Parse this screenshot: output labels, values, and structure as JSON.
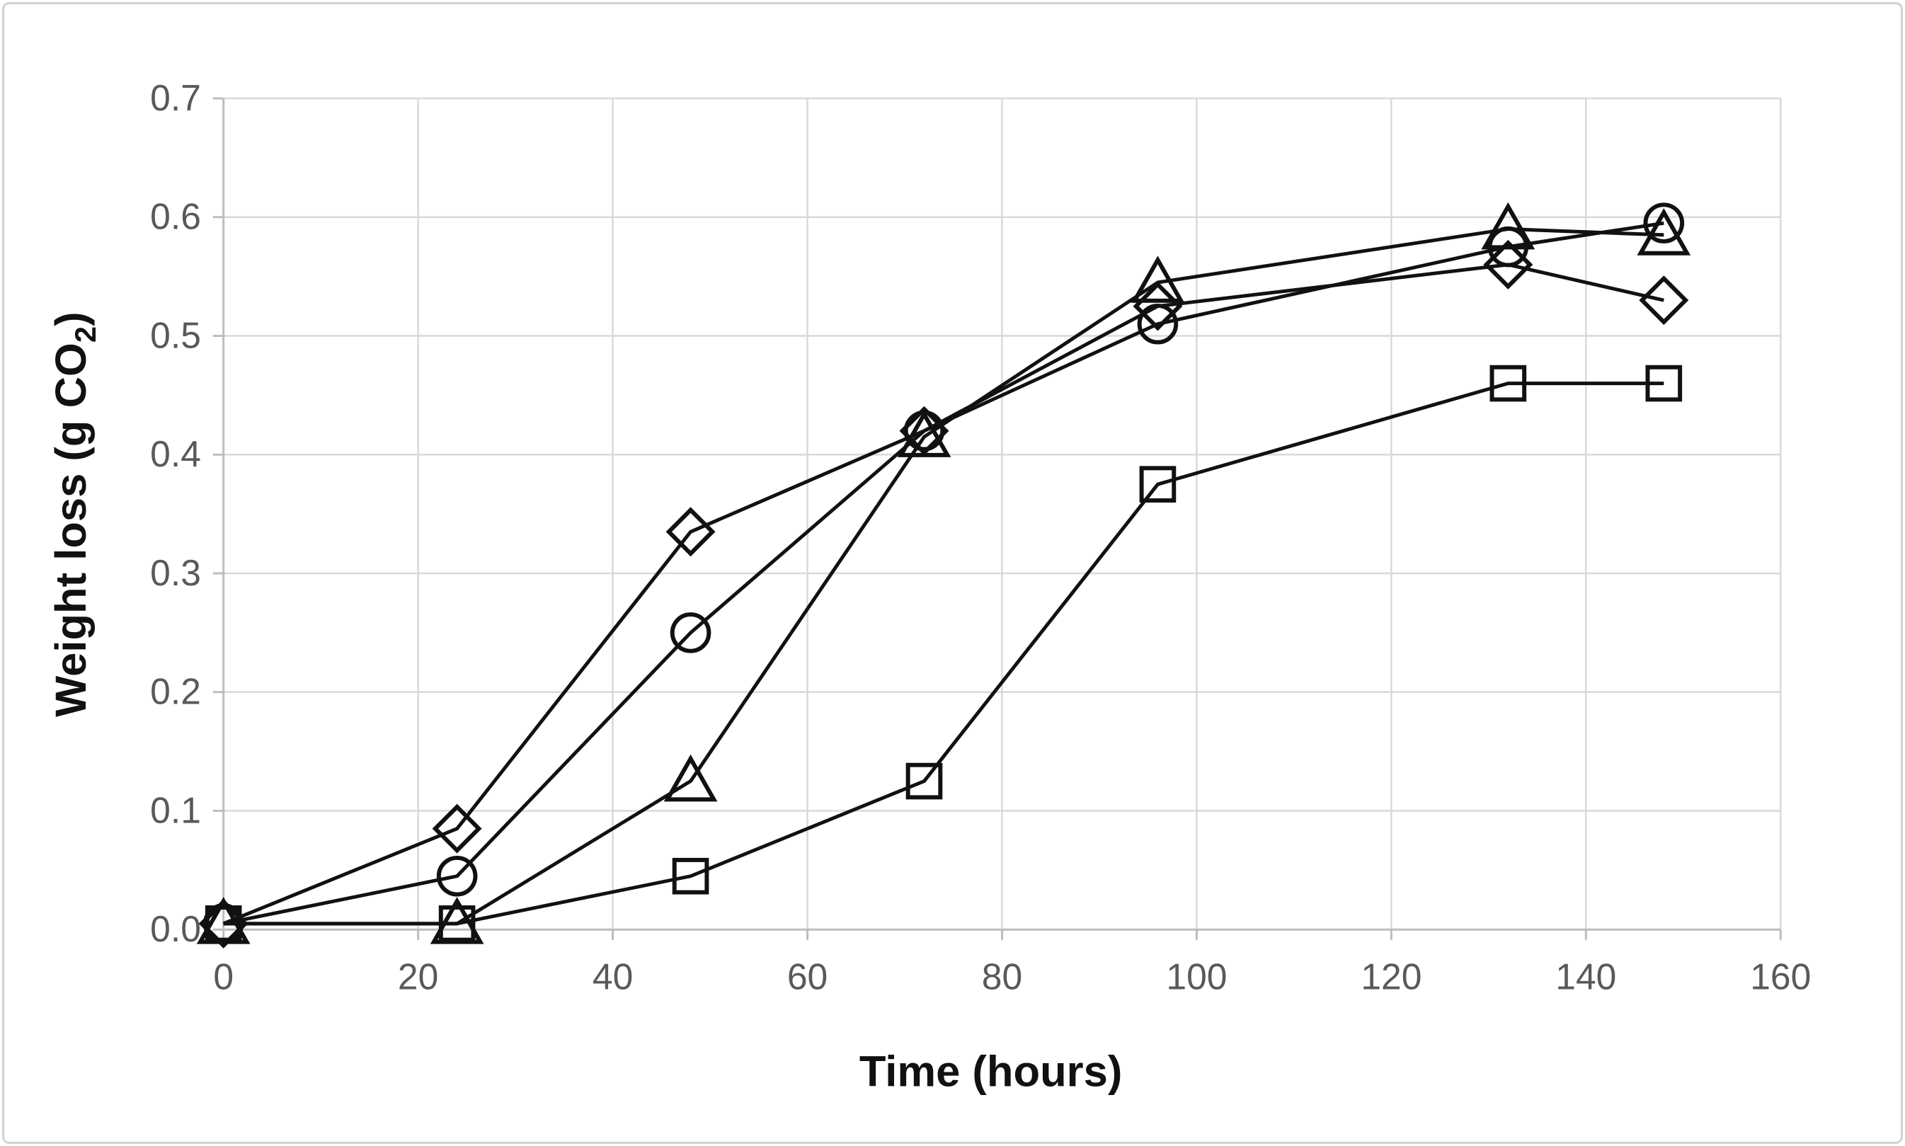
{
  "figure": {
    "background": "#ffffff",
    "border_color": "#d2d2d2"
  },
  "chart_data": {
    "type": "line",
    "title": "",
    "xlabel": "Time (hours)",
    "ylabel": "Weight loss (g CO₂)",
    "ylabel_parts": {
      "pre": "Weight loss (g CO",
      "sub": "2",
      "post": ")"
    },
    "xlim": [
      0,
      160
    ],
    "ylim": [
      0.0,
      0.7
    ],
    "x_tick_labels": [
      "0",
      "20",
      "40",
      "60",
      "80",
      "100",
      "120",
      "140",
      "160"
    ],
    "y_tick_labels": [
      "0.0",
      "0.1",
      "0.2",
      "0.3",
      "0.4",
      "0.5",
      "0.6",
      "0.7"
    ],
    "grid": true,
    "legend": "none",
    "x": [
      0,
      24,
      48,
      72,
      96,
      132,
      148
    ],
    "series": [
      {
        "name": "diamond-series",
        "marker": "diamond",
        "values": [
          0.005,
          0.085,
          0.335,
          0.42,
          0.525,
          0.56,
          0.53
        ]
      },
      {
        "name": "circle-series",
        "marker": "circle",
        "values": [
          0.005,
          0.045,
          0.25,
          0.42,
          0.51,
          0.575,
          0.595
        ]
      },
      {
        "name": "triangle-series",
        "marker": "triangle",
        "values": [
          0.005,
          0.005,
          0.125,
          0.415,
          0.545,
          0.59,
          0.585
        ]
      },
      {
        "name": "square-series",
        "marker": "square",
        "values": [
          0.005,
          0.005,
          0.045,
          0.125,
          0.375,
          0.46,
          0.46
        ]
      }
    ],
    "styles": {
      "line_color": "#111111",
      "marker_color": "#111111",
      "grid_color": "#d9d9d9",
      "axis_color": "#bdbdbd",
      "tick_label_color": "#595959",
      "axis_title_color": "#111111"
    }
  }
}
